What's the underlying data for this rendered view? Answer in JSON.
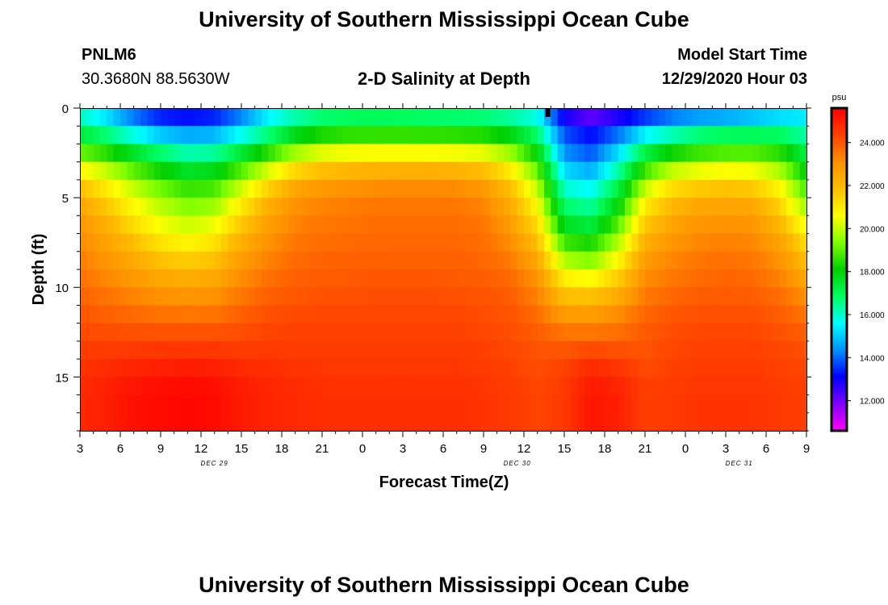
{
  "header": {
    "title_top": "University of Southern Mississippi Ocean Cube",
    "title_bottom": "University of Southern Mississippi Ocean Cube",
    "station_id": "PNLM6",
    "station_coords": "30.3680N 88.5630W",
    "chart_title": "2-D Salinity at Depth",
    "model_start_label": "Model Start Time",
    "model_start_value": "12/29/2020 Hour 03"
  },
  "colors": {
    "scale": [
      "#ff00ff",
      "#8000ff",
      "#0000ff",
      "#0090ff",
      "#00ffff",
      "#00ff60",
      "#00d000",
      "#80ff00",
      "#ffff00",
      "#ffc000",
      "#ff9000",
      "#ff4000",
      "#ff0000"
    ]
  },
  "chart_data": {
    "type": "heatmap",
    "title": "2-D Salinity at Depth",
    "xlabel": "Forecast Time(Z)",
    "ylabel": "Depth (ft)",
    "x_ticks": [
      "3",
      "6",
      "9",
      "12",
      "15",
      "18",
      "21",
      "0",
      "3",
      "6",
      "9",
      "12",
      "15",
      "18",
      "21",
      "0",
      "3",
      "6",
      "9"
    ],
    "x_range_hours": [
      0,
      54
    ],
    "date_labels": [
      {
        "label": "DEC 29",
        "hour": 10
      },
      {
        "label": "DEC 30",
        "hour": 32.5
      },
      {
        "label": "DEC 31",
        "hour": 49
      }
    ],
    "y_ticks": [
      0,
      5,
      10,
      15
    ],
    "y_range_ft": [
      0,
      18
    ],
    "colorbar": {
      "unit": "psu",
      "min": 10.6,
      "max": 25.6,
      "tick_values": [
        12,
        14,
        16,
        18,
        20,
        22,
        24
      ],
      "tick_labels": [
        "12.000",
        "14.000",
        "16.000",
        "18.000",
        "20.000",
        "22.000",
        "24.000"
      ]
    },
    "hours": [
      0,
      2,
      4,
      6,
      8,
      10,
      12,
      14,
      16,
      18,
      20,
      22,
      24,
      26,
      28,
      30,
      32,
      34,
      36,
      38,
      40,
      42,
      44,
      46,
      48,
      50,
      52,
      54
    ],
    "depths_ft": [
      0,
      1,
      2,
      3,
      4,
      5,
      6,
      7,
      8,
      9,
      10,
      11,
      12,
      13,
      14,
      15,
      16,
      17
    ],
    "salinity_psu": [
      [
        15.8,
        14.8,
        13.5,
        12.8,
        12.6,
        12.8,
        13.8,
        15.2,
        15.8,
        16.2,
        16.3,
        16.3,
        16.2,
        16.1,
        16.0,
        16.0,
        15.8,
        15.4,
        12.2,
        11.6,
        12.0,
        12.6,
        13.2,
        13.5,
        13.6,
        14.0,
        14.5,
        15.0
      ],
      [
        16.5,
        15.8,
        14.8,
        14.0,
        13.8,
        14.0,
        14.8,
        15.8,
        16.8,
        17.3,
        17.5,
        17.6,
        17.6,
        17.5,
        17.5,
        17.4,
        17.0,
        16.2,
        13.6,
        12.8,
        13.6,
        14.6,
        15.2,
        15.6,
        15.8,
        15.9,
        16.0,
        15.8
      ],
      [
        18.2,
        17.6,
        16.8,
        16.0,
        15.5,
        15.6,
        16.6,
        17.6,
        18.8,
        19.4,
        19.6,
        19.6,
        19.6,
        19.6,
        19.5,
        19.4,
        18.8,
        17.5,
        14.0,
        13.5,
        14.6,
        16.4,
        17.2,
        17.8,
        18.0,
        18.0,
        17.8,
        16.8
      ],
      [
        20.0,
        19.4,
        18.4,
        17.6,
        17.0,
        17.2,
        18.2,
        19.4,
        20.6,
        21.2,
        21.4,
        21.6,
        21.6,
        21.6,
        21.5,
        21.3,
        20.4,
        18.6,
        14.8,
        14.2,
        15.8,
        18.0,
        19.2,
        19.6,
        19.8,
        19.8,
        19.2,
        17.6
      ],
      [
        21.5,
        20.6,
        19.6,
        18.8,
        18.2,
        18.4,
        19.6,
        21.0,
        22.2,
        22.6,
        22.8,
        22.9,
        23.0,
        23.0,
        22.9,
        22.6,
        21.6,
        19.6,
        15.6,
        15.2,
        16.8,
        19.4,
        20.8,
        21.2,
        21.4,
        21.2,
        20.4,
        18.4
      ],
      [
        22.3,
        21.4,
        20.4,
        19.6,
        19.0,
        19.2,
        20.6,
        22.0,
        22.9,
        23.2,
        23.3,
        23.4,
        23.4,
        23.4,
        23.4,
        23.2,
        22.2,
        20.4,
        16.4,
        16.0,
        17.6,
        20.6,
        21.8,
        22.2,
        22.3,
        22.2,
        21.2,
        19.2
      ],
      [
        22.8,
        22.0,
        21.0,
        20.2,
        19.8,
        20.0,
        21.4,
        22.6,
        23.2,
        23.4,
        23.5,
        23.6,
        23.6,
        23.6,
        23.6,
        23.4,
        22.6,
        21.0,
        17.2,
        16.8,
        18.4,
        21.4,
        22.4,
        22.8,
        22.9,
        22.8,
        21.8,
        20.0
      ],
      [
        23.1,
        22.5,
        21.6,
        20.8,
        20.4,
        20.8,
        22.0,
        22.9,
        23.4,
        23.6,
        23.6,
        23.7,
        23.7,
        23.7,
        23.7,
        23.6,
        23.0,
        21.6,
        18.2,
        17.8,
        19.4,
        22.0,
        22.8,
        23.1,
        23.2,
        23.1,
        22.4,
        20.8
      ],
      [
        23.3,
        22.8,
        22.2,
        21.5,
        21.2,
        21.5,
        22.6,
        23.2,
        23.6,
        23.7,
        23.8,
        23.8,
        23.8,
        23.8,
        23.8,
        23.7,
        23.3,
        22.2,
        19.2,
        18.8,
        20.2,
        22.6,
        23.1,
        23.4,
        23.5,
        23.4,
        22.9,
        21.6
      ],
      [
        23.5,
        23.1,
        22.7,
        22.2,
        22.0,
        22.2,
        23.0,
        23.5,
        23.8,
        23.9,
        23.9,
        23.9,
        23.9,
        23.9,
        23.9,
        23.8,
        23.6,
        22.8,
        20.4,
        20.0,
        21.2,
        23.0,
        23.4,
        23.6,
        23.7,
        23.6,
        23.2,
        22.2
      ],
      [
        23.7,
        23.4,
        23.1,
        22.8,
        22.7,
        22.8,
        23.3,
        23.7,
        23.9,
        24.0,
        24.0,
        24.1,
        24.1,
        24.1,
        24.0,
        24.0,
        23.8,
        23.2,
        21.4,
        21.2,
        22.0,
        23.3,
        23.6,
        23.8,
        23.9,
        23.8,
        23.5,
        22.8
      ],
      [
        23.9,
        23.7,
        23.5,
        23.3,
        23.2,
        23.3,
        23.7,
        24.0,
        24.1,
        24.2,
        24.2,
        24.2,
        24.2,
        24.2,
        24.2,
        24.1,
        24.0,
        23.5,
        22.4,
        22.4,
        22.8,
        23.6,
        23.9,
        24.0,
        24.0,
        24.0,
        23.8,
        23.3
      ],
      [
        24.1,
        24.0,
        23.9,
        23.8,
        23.8,
        23.8,
        24.0,
        24.2,
        24.3,
        24.3,
        24.3,
        24.3,
        24.3,
        24.3,
        24.3,
        24.2,
        24.1,
        23.8,
        23.2,
        23.2,
        23.4,
        23.9,
        24.1,
        24.2,
        24.2,
        24.2,
        24.0,
        23.7
      ],
      [
        24.3,
        24.3,
        24.3,
        24.3,
        24.3,
        24.3,
        24.3,
        24.4,
        24.4,
        24.4,
        24.4,
        24.4,
        24.4,
        24.4,
        24.4,
        24.3,
        24.2,
        24.0,
        23.8,
        23.8,
        23.8,
        24.0,
        24.2,
        24.3,
        24.3,
        24.3,
        24.2,
        24.0
      ],
      [
        24.5,
        24.6,
        24.7,
        24.8,
        24.8,
        24.8,
        24.6,
        24.6,
        24.5,
        24.5,
        24.5,
        24.5,
        24.5,
        24.5,
        24.5,
        24.4,
        24.3,
        24.1,
        24.2,
        24.6,
        24.4,
        24.1,
        24.3,
        24.4,
        24.4,
        24.4,
        24.3,
        24.2
      ],
      [
        24.7,
        24.9,
        25.1,
        25.2,
        25.3,
        25.2,
        25.0,
        24.8,
        24.7,
        24.6,
        24.6,
        24.6,
        24.6,
        24.6,
        24.6,
        24.5,
        24.4,
        24.2,
        24.4,
        25.0,
        24.8,
        24.3,
        24.4,
        24.5,
        24.5,
        24.5,
        24.4,
        24.3
      ],
      [
        24.8,
        25.0,
        25.3,
        25.4,
        25.5,
        25.4,
        25.1,
        24.9,
        24.8,
        24.7,
        24.7,
        24.7,
        24.7,
        24.7,
        24.7,
        24.6,
        24.5,
        24.3,
        24.5,
        25.2,
        25.0,
        24.4,
        24.5,
        24.6,
        24.6,
        24.6,
        24.5,
        24.4
      ],
      [
        24.8,
        25.0,
        25.3,
        25.4,
        25.5,
        25.4,
        25.1,
        24.9,
        24.8,
        24.7,
        24.7,
        24.7,
        24.7,
        24.7,
        24.7,
        24.6,
        24.5,
        24.3,
        24.5,
        25.2,
        25.0,
        24.4,
        24.5,
        24.6,
        24.6,
        24.6,
        24.5,
        24.4
      ]
    ]
  }
}
